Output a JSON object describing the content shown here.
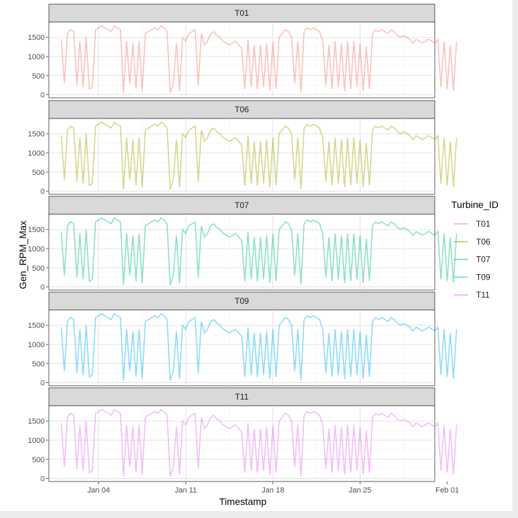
{
  "chart_data": {
    "type": "line",
    "facet_by": "Turbine_ID",
    "xlabel": "Timestamp",
    "ylabel": "Gen_RPM_Max",
    "x_range": [
      "2019-12-31",
      "2020-01-31"
    ],
    "x_ticks": [
      {
        "date": "2020-01-04",
        "label": "Jan 04"
      },
      {
        "date": "2020-01-11",
        "label": "Jan 11"
      },
      {
        "date": "2020-01-18",
        "label": "Jan 18"
      },
      {
        "date": "2020-01-25",
        "label": "Jan 25"
      },
      {
        "date": "2020-02-01",
        "label": "Feb 01"
      }
    ],
    "ylim": [
      -80,
      1900
    ],
    "y_ticks": [
      0,
      500,
      1000,
      1500
    ],
    "grid": true,
    "legend": {
      "title": "Turbine_ID",
      "position": "right"
    },
    "series": [
      {
        "name": "T01",
        "color": "#F8766D"
      },
      {
        "name": "T06",
        "color": "#A3A500"
      },
      {
        "name": "T07",
        "color": "#00BF7D"
      },
      {
        "name": "T09",
        "color": "#00B0F6"
      },
      {
        "name": "T11",
        "color": "#E76BF3"
      }
    ],
    "shared_values": {
      "x_start": "2020-01-01",
      "x_step_days": 0.25,
      "y": [
        1450,
        300,
        1600,
        1700,
        1650,
        250,
        1400,
        200,
        1500,
        150,
        200,
        1700,
        1750,
        1800,
        1750,
        1700,
        1650,
        1800,
        1750,
        1700,
        50,
        1400,
        300,
        1350,
        150,
        1400,
        100,
        1600,
        1650,
        1700,
        1750,
        1700,
        1800,
        1750,
        1650,
        50,
        300,
        1350,
        100,
        1500,
        1400,
        1600,
        1650,
        1700,
        250,
        1600,
        1300,
        1400,
        1600,
        1650,
        1550,
        1500,
        1400,
        1350,
        1300,
        1350,
        1400,
        1300,
        1200,
        150,
        1450,
        200,
        1300,
        150,
        1300,
        200,
        1350,
        100,
        1400,
        150,
        1500,
        1600,
        1700,
        1650,
        1500,
        300,
        1400,
        50,
        1650,
        1750,
        1700,
        1750,
        1700,
        1650,
        1400,
        250,
        1300,
        150,
        1400,
        200,
        1350,
        100,
        1400,
        150,
        1400,
        200,
        1350,
        100,
        1250,
        150,
        1600,
        1700,
        1650,
        1700,
        1650,
        1600,
        1700,
        1650,
        1550,
        1500,
        1550,
        1500,
        1450,
        1350,
        1450,
        1400,
        1350,
        1400,
        1450,
        1400,
        1350,
        1450,
        200,
        1400,
        150,
        1300,
        100,
        1400
      ]
    }
  }
}
